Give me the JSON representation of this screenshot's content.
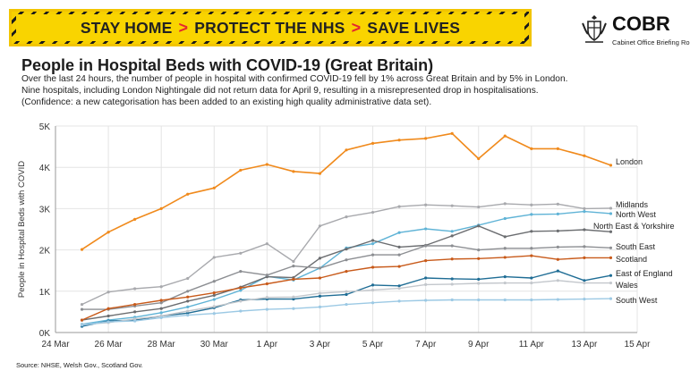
{
  "banner": {
    "part1": "STAY HOME",
    "part2": "PROTECT THE NHS",
    "part3": "SAVE LIVES",
    "separator": ">"
  },
  "logo": {
    "name": "COBR",
    "subtitle": "Cabinet Office Briefing Rooms"
  },
  "header": {
    "title": "People in Hospital Beds with COVID-19 (Great Britain)",
    "line1": "Over the last 24 hours, the number of people in hospital with confirmed COVID-19 fell by 1% across Great Britain and by 5% in London.",
    "line2": "Nine hospitals, including London Nightingale did not return data for April 9, resulting in a misrepresented drop in hospitalisations.",
    "line3": "(Confidence: a new categorisation has been added to an existing high quality administrative data set)."
  },
  "source": "Source: NHSE, Welsh Gov., Scotland Gov.",
  "chart_data": {
    "type": "line",
    "title": "People in Hospital Beds with COVID-19 (Great Britain)",
    "ylabel": "People in Hospital Beds with COVID",
    "xlabel": "",
    "x_start_label": "24 Mar",
    "x_tick_labels": [
      "24 Mar",
      "26 Mar",
      "28 Mar",
      "30 Mar",
      "1 Apr",
      "3 Apr",
      "5 Apr",
      "7 Apr",
      "9 Apr",
      "11 Apr",
      "13 Apr",
      "15 Apr"
    ],
    "y_tick_labels": [
      "0K",
      "1K",
      "2K",
      "3K",
      "4K",
      "5K"
    ],
    "ylim": [
      0,
      5000
    ],
    "grid": true,
    "legend": "labels at line ends",
    "x": [
      "25 Mar",
      "26 Mar",
      "27 Mar",
      "28 Mar",
      "29 Mar",
      "30 Mar",
      "31 Mar",
      "1 Apr",
      "2 Apr",
      "3 Apr",
      "4 Apr",
      "5 Apr",
      "6 Apr",
      "7 Apr",
      "8 Apr",
      "9 Apr",
      "10 Apr",
      "11 Apr",
      "12 Apr",
      "13 Apr",
      "14 Apr"
    ],
    "series": [
      {
        "name": "London",
        "color": "#f08a1c",
        "width": 1.6,
        "values": [
          2010,
          2430,
          2740,
          3000,
          3350,
          3500,
          3930,
          4070,
          3900,
          3850,
          4420,
          4580,
          4660,
          4700,
          4820,
          4210,
          4760,
          4450,
          4450,
          4280,
          4050
        ]
      },
      {
        "name": "Midlands",
        "color": "#a8a9ad",
        "width": 1.4,
        "values": [
          680,
          980,
          1060,
          1110,
          1310,
          1820,
          1920,
          2150,
          1720,
          2580,
          2800,
          2910,
          3050,
          3090,
          3070,
          3040,
          3120,
          3090,
          3110,
          3000,
          3010
        ]
      },
      {
        "name": "North West",
        "color": "#5fb3d6",
        "width": 1.4,
        "values": [
          200,
          300,
          370,
          480,
          620,
          800,
          1020,
          1360,
          1270,
          1560,
          2050,
          2150,
          2420,
          2510,
          2450,
          2600,
          2760,
          2860,
          2870,
          2930,
          2880
        ]
      },
      {
        "name": "North East & Yorkshire",
        "color": "#6b6d70",
        "width": 1.4,
        "values": [
          300,
          400,
          500,
          580,
          760,
          900,
          1100,
          1350,
          1330,
          1800,
          2020,
          2230,
          2070,
          2110,
          2340,
          2580,
          2320,
          2450,
          2460,
          2490,
          2440
        ]
      },
      {
        "name": "South East",
        "color": "#8c8e92",
        "width": 1.4,
        "values": [
          560,
          560,
          640,
          720,
          1000,
          1240,
          1480,
          1390,
          1610,
          1560,
          1760,
          1880,
          1880,
          2100,
          2100,
          2000,
          2040,
          2040,
          2070,
          2080,
          2050
        ]
      },
      {
        "name": "Scotland",
        "color": "#c85a1a",
        "width": 1.4,
        "values": [
          300,
          580,
          680,
          780,
          860,
          960,
          1080,
          1180,
          1290,
          1320,
          1480,
          1580,
          1600,
          1740,
          1780,
          1790,
          1820,
          1860,
          1770,
          1810,
          1810
        ]
      },
      {
        "name": "East of England",
        "color": "#1f6d95",
        "width": 1.4,
        "values": [
          150,
          280,
          300,
          400,
          470,
          600,
          790,
          810,
          810,
          880,
          920,
          1150,
          1130,
          1320,
          1300,
          1290,
          1350,
          1320,
          1490,
          1260,
          1380
        ]
      },
      {
        "name": "Wales",
        "color": "#c3c7cc",
        "width": 1.4,
        "values": [
          190,
          240,
          330,
          400,
          520,
          630,
          760,
          850,
          860,
          950,
          990,
          1030,
          1070,
          1160,
          1170,
          1190,
          1200,
          1200,
          1260,
          1200,
          1200
        ]
      },
      {
        "name": "South West",
        "color": "#9cc9e4",
        "width": 1.4,
        "values": [
          180,
          260,
          280,
          360,
          420,
          460,
          520,
          560,
          580,
          620,
          680,
          720,
          760,
          780,
          790,
          790,
          790,
          790,
          800,
          810,
          820
        ]
      }
    ]
  }
}
